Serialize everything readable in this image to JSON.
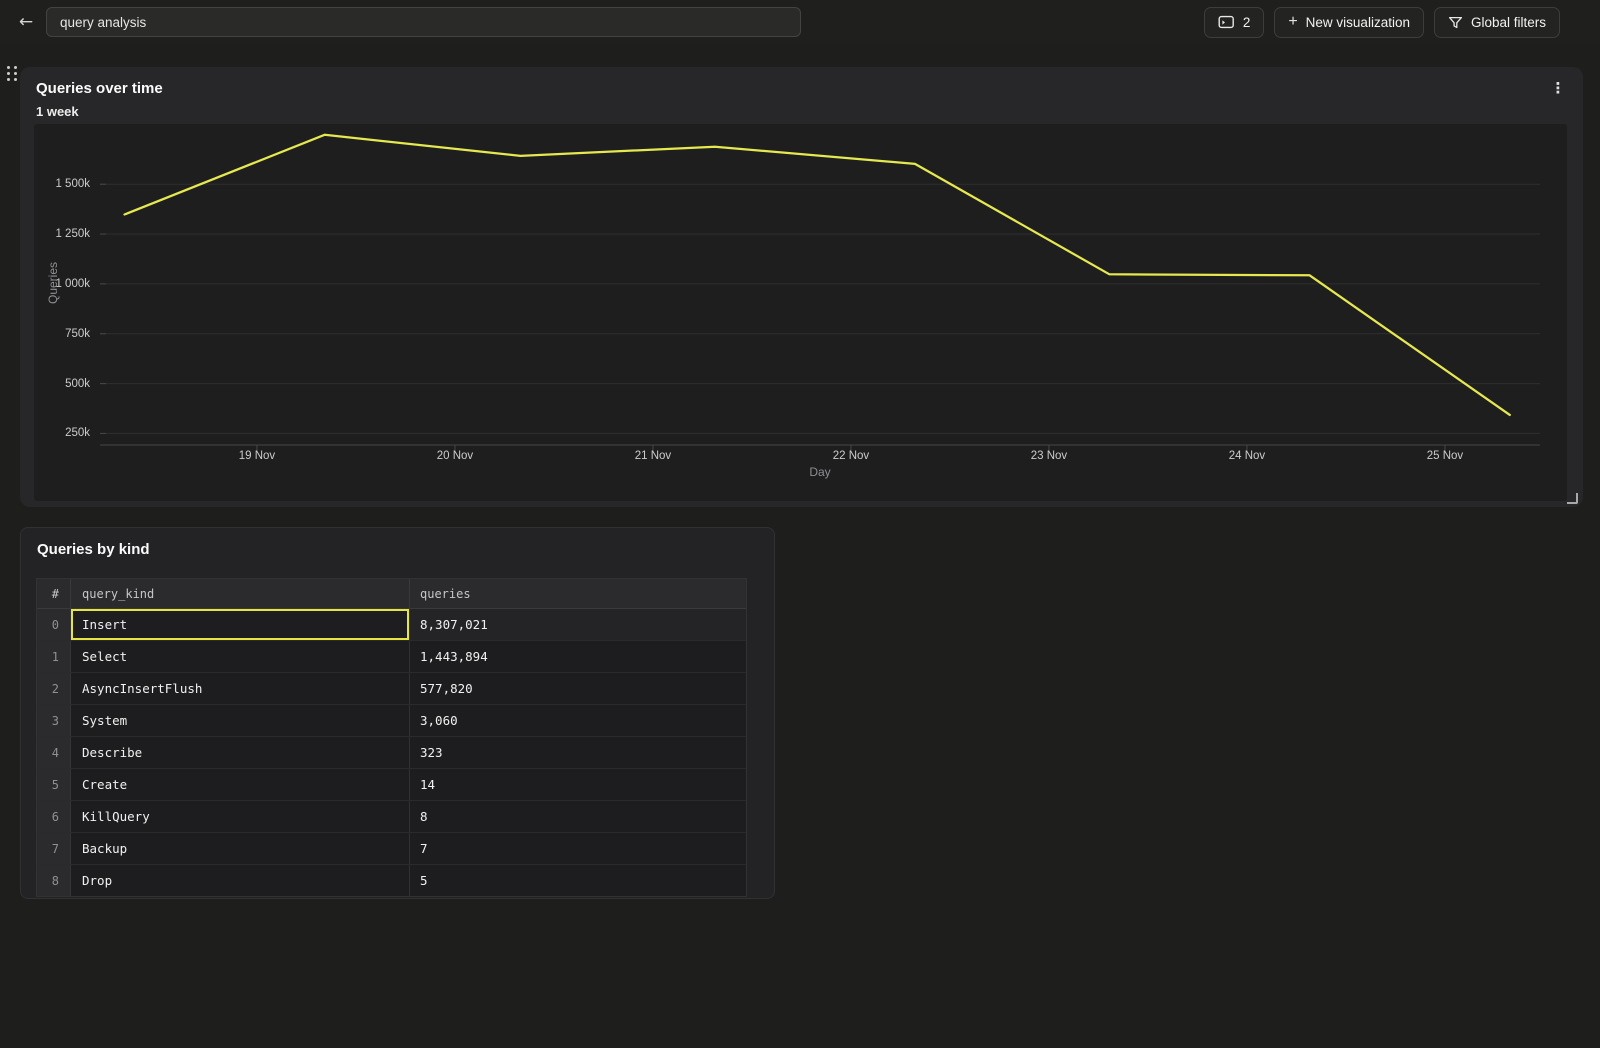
{
  "icons": {
    "back": "←",
    "kebab": "⋮",
    "plus": "+"
  },
  "colors": {
    "accent_line": "#e5e84f",
    "selection_border": "#e7e542",
    "grid": "#2e2e30",
    "axis": "#47474a"
  },
  "topbar": {
    "title_input": {
      "value": "query analysis"
    },
    "viz_count_button": {
      "count": "2"
    },
    "new_viz_button": {
      "label": "New visualization"
    },
    "global_filters_button": {
      "label": "Global filters"
    }
  },
  "chart_panel": {
    "title": "Queries over time",
    "subtitle": "1 week"
  },
  "chart_data": {
    "type": "line",
    "title": "Queries over time",
    "subtitle": "1 week",
    "xlabel": "Day",
    "ylabel": "Queries",
    "grid": true,
    "legend": "none",
    "ylim": [
      192000,
      1802000
    ],
    "y_ticks": [
      {
        "v": 250000,
        "label": "250k"
      },
      {
        "v": 500000,
        "label": "500k"
      },
      {
        "v": 750000,
        "label": "750k"
      },
      {
        "v": 1000000,
        "label": "1 000k"
      },
      {
        "v": 1250000,
        "label": "1 250k"
      },
      {
        "v": 1500000,
        "label": "1 500k"
      }
    ],
    "x_ticks": [
      {
        "x": 0.109,
        "label": "19 Nov"
      },
      {
        "x": 0.2465,
        "label": "20 Nov"
      },
      {
        "x": 0.384,
        "label": "21 Nov"
      },
      {
        "x": 0.5215,
        "label": "22 Nov"
      },
      {
        "x": 0.659,
        "label": "23 Nov"
      },
      {
        "x": 0.7965,
        "label": "24 Nov"
      },
      {
        "x": 0.934,
        "label": "25 Nov"
      }
    ],
    "series": [
      {
        "name": "queries",
        "points": [
          {
            "x": 0.017,
            "v": 1348000
          },
          {
            "x": 0.156,
            "v": 1748000
          },
          {
            "x": 0.292,
            "v": 1642000
          },
          {
            "x": 0.427,
            "v": 1688000
          },
          {
            "x": 0.566,
            "v": 1602000
          },
          {
            "x": 0.701,
            "v": 1048000
          },
          {
            "x": 0.84,
            "v": 1043000
          },
          {
            "x": 0.979,
            "v": 343000
          }
        ]
      }
    ]
  },
  "table_panel": {
    "title": "Queries by kind",
    "columns": [
      "#",
      "query_kind",
      "queries"
    ],
    "selected": {
      "row": 0,
      "column": "query_kind"
    },
    "rows": [
      {
        "idx": "0",
        "query_kind": "Insert",
        "queries": "8,307,021"
      },
      {
        "idx": "1",
        "query_kind": "Select",
        "queries": "1,443,894"
      },
      {
        "idx": "2",
        "query_kind": "AsyncInsertFlush",
        "queries": "577,820"
      },
      {
        "idx": "3",
        "query_kind": "System",
        "queries": "3,060"
      },
      {
        "idx": "4",
        "query_kind": "Describe",
        "queries": "323"
      },
      {
        "idx": "5",
        "query_kind": "Create",
        "queries": "14"
      },
      {
        "idx": "6",
        "query_kind": "KillQuery",
        "queries": "8"
      },
      {
        "idx": "7",
        "query_kind": "Backup",
        "queries": "7"
      },
      {
        "idx": "8",
        "query_kind": "Drop",
        "queries": "5"
      }
    ]
  }
}
